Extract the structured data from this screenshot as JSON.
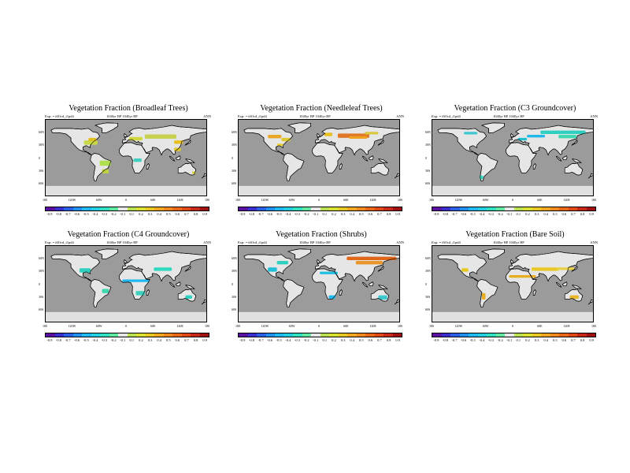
{
  "panels": [
    {
      "title": "Vegetation Fraction (Broadleaf Trees)",
      "exp": "Exp: = t6Ocd_t1pd4",
      "mid": "1040yr BP  1040yr BP",
      "season": "ANN"
    },
    {
      "title": "Vegetation Fraction (Needleleaf Trees)",
      "exp": "Exp: = t6Ocd_t1pd4",
      "mid": "1040yr BP  1040yr BP",
      "season": "ANN"
    },
    {
      "title": "Vegetation Fraction (C3 Groundcover)",
      "exp": "Exp: = t6Ocd_t1pd4",
      "mid": "1040yr BP  1040yr BP",
      "season": "ANN"
    },
    {
      "title": "Vegetation Fraction (C4 Groundcover)",
      "exp": "Exp: = t6Ocd_t1pd4",
      "mid": "1040yr BP  1040yr BP",
      "season": "ANN"
    },
    {
      "title": "Vegetation Fraction (Shrubs)",
      "exp": "Exp: = t6Ocd_t1pd4",
      "mid": "1040yr BP  1040yr BP",
      "season": "ANN"
    },
    {
      "title": "Vegetation Fraction (Bare Soil)",
      "exp": "Exp: = t6Ocd_t1pd4",
      "mid": "1040yr BP  1040yr BP",
      "season": "ANN"
    }
  ],
  "lat_labels": [
    "60N",
    "30N",
    "0",
    "30S",
    "60S"
  ],
  "lon_labels": [
    "180",
    "120W",
    "60W",
    "0",
    "60E",
    "120E",
    "180"
  ],
  "colorbar": {
    "labels": [
      "-0.9",
      "-0.8",
      "-0.7",
      "-0.6",
      "-0.5",
      "-0.4",
      "-0.3",
      "-0.2",
      "-0.1",
      "0.1",
      "0.2",
      "0.3",
      "0.4",
      "0.5",
      "0.6",
      "0.7",
      "0.8",
      "0.9"
    ],
    "colors": [
      "#5a10a0",
      "#3a2fd0",
      "#2a5fe8",
      "#1f8ff0",
      "#20b8f0",
      "#20d0e0",
      "#30e0c0",
      "#60e8a0",
      "#e6e6e6",
      "#b8e050",
      "#d8e030",
      "#e8c820",
      "#f0a820",
      "#f08820",
      "#e86818",
      "#e04818",
      "#c82818",
      "#a01010"
    ]
  },
  "colors": {
    "ocean": "#9b9b9b",
    "land": "#e6e6e6",
    "antarctica": "#e0e0e0",
    "coast": "#000000"
  }
}
